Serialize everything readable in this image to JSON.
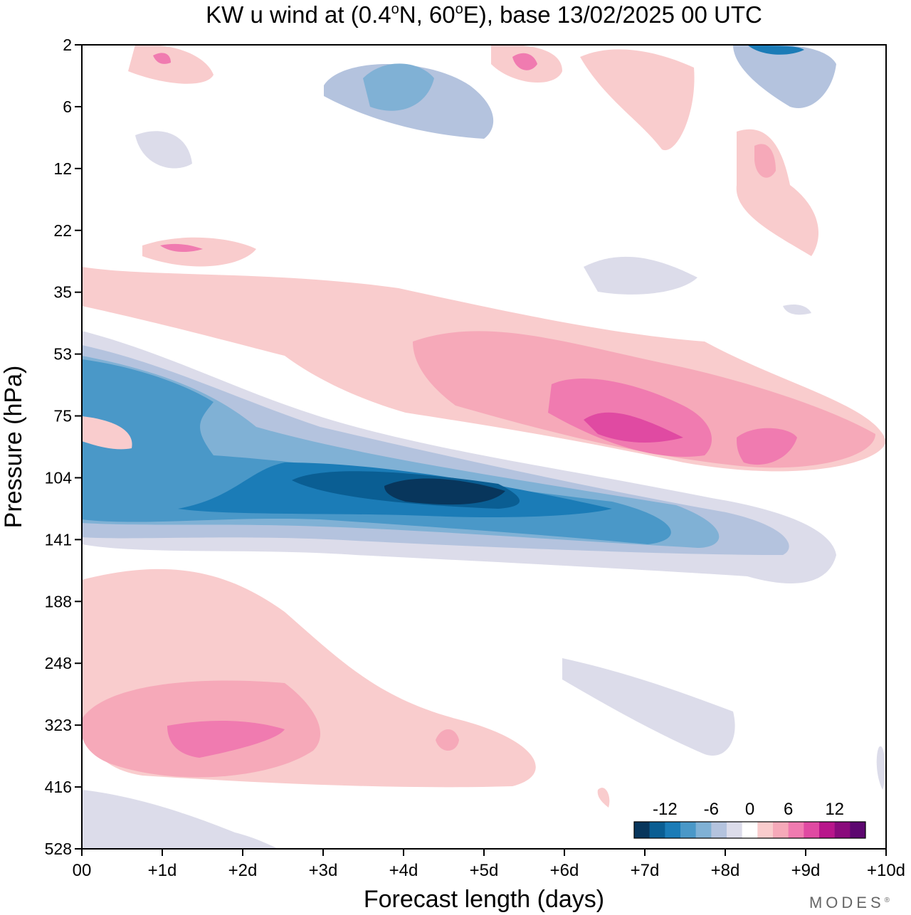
{
  "chart_data": {
    "type": "heatmap",
    "title": "KW u wind at (0.4°N, 60°E),  base 13/02/2025  00 UTC",
    "title_parts": {
      "prefix": "KW u wind at (0.4",
      "deg1": "o",
      "mid": "N, 60",
      "deg2": "o",
      "suffix": "E),  base 13/02/2025  00 UTC"
    },
    "xlabel": "Forecast length (days)",
    "ylabel": "Pressure (hPa)",
    "x_ticks": [
      "00",
      "+1d",
      "+2d",
      "+3d",
      "+4d",
      "+5d",
      "+6d",
      "+7d",
      "+8d",
      "+9d",
      "+10d"
    ],
    "y_ticks": [
      "2",
      "6",
      "12",
      "22",
      "35",
      "53",
      "75",
      "104",
      "141",
      "188",
      "248",
      "323",
      "416",
      "528"
    ],
    "xlim": [
      0,
      10
    ],
    "ylim": [
      2,
      528
    ],
    "colorbar": {
      "levels": [
        -14,
        -12,
        -10,
        -8,
        -6,
        -4,
        -2,
        2,
        4,
        6,
        8,
        10,
        12,
        14
      ],
      "colors": [
        "#08365c",
        "#0a5e93",
        "#1b7cb7",
        "#4a98c8",
        "#80b1d5",
        "#b4c3de",
        "#dcdcea",
        "#ffffff",
        "#f9cccd",
        "#f6a9b9",
        "#f07bb0",
        "#e04aa2",
        "#b8168b",
        "#8a0b7c",
        "#5d0770"
      ],
      "labels": [
        "-12",
        "-6",
        "0",
        "6",
        "12"
      ]
    },
    "regions": [
      {
        "value": 10,
        "x": [
          0.2,
          1.1
        ],
        "p": [
          2.6,
          3.6
        ],
        "sx": 1.0,
        "sp": 0.9
      },
      {
        "value": 4,
        "x": [
          1.4,
          2.2
        ],
        "p": [
          5.5,
          8.5
        ],
        "sx": 1.0,
        "sp": 0.9
      },
      {
        "value": -8,
        "x": [
          3.5,
          4.6
        ],
        "p": [
          3.2,
          6.0
        ],
        "sx": 1.1,
        "sp": 0.9
      },
      {
        "value": -6,
        "x": [
          4.4,
          5.2
        ],
        "p": [
          6.0,
          8.0
        ],
        "sx": 1.0,
        "sp": 0.9
      },
      {
        "value": -4,
        "x": [
          1.0,
          2.2
        ],
        "p": [
          9.0,
          14.0
        ],
        "sx": 1.0,
        "sp": 0.9
      },
      {
        "value": 10,
        "x": [
          5.2,
          5.9
        ],
        "p": [
          2.3,
          4.0
        ],
        "sx": 1.0,
        "sp": 0.9
      },
      {
        "value": 8,
        "x": [
          6.3,
          7.0
        ],
        "p": [
          2.8,
          6.5
        ],
        "sx": 1.0,
        "sp": 0.9
      },
      {
        "value": 6,
        "x": [
          7.2,
          7.6
        ],
        "p": [
          3.5,
          10.0
        ],
        "sx": 1.0,
        "sp": 0.9
      },
      {
        "value": -12,
        "x": [
          7.9,
          9.2
        ],
        "p": [
          2.0,
          3.5
        ],
        "sx": 1.0,
        "sp": 0.8
      },
      {
        "value": -4,
        "x": [
          8.8,
          9.4
        ],
        "p": [
          3.5,
          8.0
        ],
        "sx": 1.0,
        "sp": 0.9
      },
      {
        "value": 8,
        "x": [
          8.2,
          8.8
        ],
        "p": [
          9.0,
          20.0
        ],
        "sx": 1.0,
        "sp": 0.9
      },
      {
        "value": 4,
        "x": [
          9.5,
          9.9
        ],
        "p": [
          20.0,
          32.0
        ],
        "sx": 1.0,
        "sp": 0.9
      },
      {
        "value": 6,
        "x": [
          0.8,
          2.1
        ],
        "p": [
          26.0,
          30.0
        ],
        "sx": 1.0,
        "sp": 0.9
      },
      {
        "value": 4,
        "x": [
          0.2,
          3.2
        ],
        "p": [
          36.0,
          52.0
        ],
        "sx": 1.3,
        "sp": 1.0
      },
      {
        "value": -4,
        "x": [
          5.2,
          7.5
        ],
        "p": [
          22.0,
          40.0
        ],
        "sx": 1.0,
        "sp": 1.0
      },
      {
        "value": -2,
        "x": [
          7.5,
          9.0
        ],
        "p": [
          35.0,
          52.0
        ],
        "sx": 1.0,
        "sp": 1.0
      },
      {
        "value": -10,
        "x": [
          0.2,
          1.6
        ],
        "p": [
          54.0,
          73.0
        ],
        "sx": 1.2,
        "sp": 1.0
      },
      {
        "value": -12,
        "x": [
          3.2,
          6.4
        ],
        "p": [
          105.0,
          133.0
        ],
        "sx": 1.3,
        "sp": 1.0
      },
      {
        "value": -14,
        "x": [
          3.9,
          5.2
        ],
        "p": [
          113.0,
          127.0
        ],
        "sx": 1.0,
        "sp": 1.0
      },
      {
        "value": -8,
        "x": [
          1.5,
          8.0
        ],
        "p": [
          96.0,
          158.0
        ],
        "sx": 1.5,
        "sp": 1.2
      },
      {
        "value": 4,
        "x": [
          3.0,
          7.0
        ],
        "p": [
          46.0,
          82.0
        ],
        "sx": 1.5,
        "sp": 1.2
      },
      {
        "value": 12,
        "x": [
          6.2,
          7.8
        ],
        "p": [
          75.0,
          98.0
        ],
        "sx": 1.1,
        "sp": 1.0
      },
      {
        "value": 10,
        "x": [
          8.1,
          9.6
        ],
        "p": [
          88.0,
          110.0
        ],
        "sx": 1.1,
        "sp": 1.0
      },
      {
        "value": 6,
        "x": [
          0.7,
          2.5
        ],
        "p": [
          330.0,
          375.0
        ],
        "sx": 1.1,
        "sp": 1.0
      },
      {
        "value": 4,
        "x": [
          0.0,
          3.0
        ],
        "p": [
          290.0,
          410.0
        ],
        "sx": 1.4,
        "sp": 1.1
      },
      {
        "value": 2,
        "x": [
          0.0,
          5.3
        ],
        "p": [
          170.0,
          440.0
        ],
        "sx": 1.5,
        "sp": 1.2
      },
      {
        "value": 4,
        "x": [
          4.4,
          4.6
        ],
        "p": [
          345.0,
          370.0
        ],
        "sx": 1.0,
        "sp": 1.0
      },
      {
        "value": -2,
        "x": [
          6.0,
          8.0
        ],
        "p": [
          270.0,
          380.0
        ],
        "sx": 1.3,
        "sp": 1.1
      },
      {
        "value": -4,
        "x": [
          0.0,
          0.6
        ],
        "p": [
          500.0,
          528.0
        ],
        "sx": 1.0,
        "sp": 1.0
      }
    ]
  },
  "brand": "MODES",
  "brand_mark": "®"
}
